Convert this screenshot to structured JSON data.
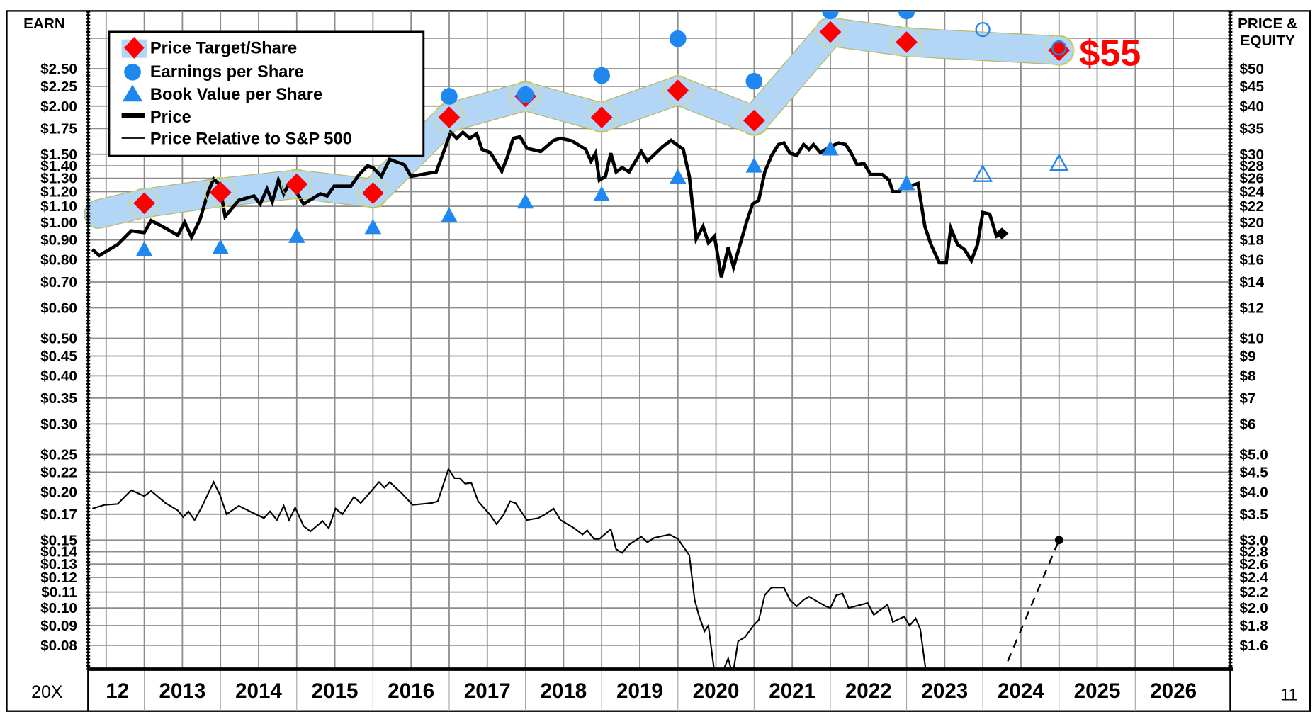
{
  "chart_data": {
    "type": "line",
    "left_axis_title": "EARN",
    "right_axis_title_line1": "PRICE &",
    "right_axis_title_line2": "EQUITY",
    "bottom_left_label": "20X",
    "bottom_right_label": "11",
    "scale": "log",
    "earn_to_price_ratio": 20,
    "left_ticks": [
      "$2.50",
      "$2.25",
      "$2.00",
      "$1.75",
      "$1.50",
      "$1.40",
      "$1.30",
      "$1.20",
      "$1.10",
      "$1.00",
      "$0.90",
      "$0.80",
      "$0.70",
      "$0.60",
      "$0.50",
      "$0.45",
      "$0.40",
      "$0.35",
      "$0.30",
      "$0.25",
      "$0.22",
      "$0.20",
      "$0.17",
      "$0.15",
      "$0.14",
      "$0.13",
      "$0.12",
      "$0.11",
      "$0.10",
      "$0.09",
      "$0.08"
    ],
    "right_ticks": [
      "$50",
      "$45",
      "$40",
      "$35",
      "$30",
      "$28",
      "$26",
      "$24",
      "$22",
      "$20",
      "$18",
      "$16",
      "$14",
      "$12",
      "$10",
      "$9",
      "$8",
      "$7",
      "$6",
      "$5.0",
      "$4.5",
      "$4.0",
      "$3.5",
      "$3.0",
      "$2.8",
      "$2.6",
      "$2.4",
      "$2.2",
      "$2.0",
      "$1.8",
      "$1.6"
    ],
    "right_tick_values": [
      50,
      45,
      40,
      35,
      30,
      28,
      26,
      24,
      22,
      20,
      18,
      16,
      14,
      12,
      10,
      9,
      8,
      7,
      6,
      5.0,
      4.5,
      4.0,
      3.5,
      3.0,
      2.8,
      2.6,
      2.4,
      2.2,
      2.0,
      1.8,
      1.6
    ],
    "extra_grid_values": [
      60
    ],
    "x_labels": [
      "12",
      "2013",
      "2014",
      "2015",
      "2016",
      "2017",
      "2018",
      "2019",
      "2020",
      "2021",
      "2022",
      "2023",
      "2024",
      "2025",
      "2026"
    ],
    "x_range": [
      2012.26,
      2027.0
    ],
    "price_range": [
      1.38,
      70.6
    ],
    "legend": {
      "placement": "top-left",
      "items": [
        "Price Target/Share",
        "Earnings per Share",
        "Book Value per Share",
        "Price",
        "Price Relative to S&P 500"
      ]
    },
    "target_label": "$55",
    "colors": {
      "target": "#ff0000",
      "eps": "#1e88f0",
      "band": "#b3d6f7",
      "band_edge": "#b8b860",
      "price": "#000000",
      "grid": "#8c8c8c"
    },
    "band_start": {
      "t": 2012.4,
      "price": 21.0
    },
    "price_target": [
      {
        "t": 2013,
        "price": 22.4
      },
      {
        "t": 2014,
        "price": 23.9
      },
      {
        "t": 2015,
        "price": 25.1
      },
      {
        "t": 2016,
        "price": 23.8
      },
      {
        "t": 2017,
        "price": 37.4
      },
      {
        "t": 2018,
        "price": 42.4
      },
      {
        "t": 2019,
        "price": 37.4
      },
      {
        "t": 2020,
        "price": 43.9
      },
      {
        "t": 2021,
        "price": 36.7
      },
      {
        "t": 2022,
        "price": 62.3
      },
      {
        "t": 2023,
        "price": 58.6
      },
      {
        "t": 2025,
        "price": 55.8
      }
    ],
    "eps": [
      {
        "t": 2017,
        "value": 2.12,
        "estimate": false
      },
      {
        "t": 2018,
        "value": 2.14,
        "estimate": false
      },
      {
        "t": 2019,
        "value": 2.4,
        "estimate": false
      },
      {
        "t": 2020,
        "value": 2.99,
        "estimate": false
      },
      {
        "t": 2021,
        "value": 2.32,
        "estimate": false
      },
      {
        "t": 2022,
        "value": 3.53,
        "estimate": false
      },
      {
        "t": 2023,
        "value": 3.53,
        "estimate": false
      },
      {
        "t": 2024,
        "value": 3.16,
        "estimate": true
      },
      {
        "t": 2025,
        "value": 2.83,
        "estimate": true
      }
    ],
    "book_value": [
      {
        "t": 2013,
        "value": 0.85,
        "estimate": false
      },
      {
        "t": 2014,
        "value": 0.86,
        "estimate": false
      },
      {
        "t": 2015,
        "value": 0.92,
        "estimate": false
      },
      {
        "t": 2016,
        "value": 0.97,
        "estimate": false
      },
      {
        "t": 2017,
        "value": 1.04,
        "estimate": false
      },
      {
        "t": 2018,
        "value": 1.13,
        "estimate": false
      },
      {
        "t": 2019,
        "value": 1.18,
        "estimate": false
      },
      {
        "t": 2020,
        "value": 1.31,
        "estimate": false
      },
      {
        "t": 2021,
        "value": 1.4,
        "estimate": false
      },
      {
        "t": 2022,
        "value": 1.55,
        "estimate": false
      },
      {
        "t": 2023,
        "value": 1.26,
        "estimate": false
      },
      {
        "t": 2024,
        "value": 1.33,
        "estimate": true
      },
      {
        "t": 2025,
        "value": 1.42,
        "estimate": true
      }
    ],
    "price": [
      [
        2012.32,
        17.0
      ],
      [
        2012.41,
        16.4
      ],
      [
        2012.65,
        17.5
      ],
      [
        2012.83,
        19.0
      ],
      [
        2013.0,
        18.8
      ],
      [
        2013.09,
        20.2
      ],
      [
        2013.28,
        19.3
      ],
      [
        2013.44,
        18.5
      ],
      [
        2013.53,
        20.0
      ],
      [
        2013.62,
        18.3
      ],
      [
        2013.73,
        20.3
      ],
      [
        2013.84,
        24.0
      ],
      [
        2013.91,
        25.9
      ],
      [
        2013.99,
        25.0
      ],
      [
        2014.06,
        20.7
      ],
      [
        2014.24,
        22.8
      ],
      [
        2014.44,
        23.4
      ],
      [
        2014.52,
        22.3
      ],
      [
        2014.61,
        24.4
      ],
      [
        2014.68,
        22.6
      ],
      [
        2014.76,
        25.7
      ],
      [
        2014.83,
        23.7
      ],
      [
        2014.9,
        25.2
      ],
      [
        2014.98,
        24.2
      ],
      [
        2015.09,
        22.3
      ],
      [
        2015.31,
        23.7
      ],
      [
        2015.4,
        23.4
      ],
      [
        2015.49,
        24.8
      ],
      [
        2015.71,
        24.8
      ],
      [
        2015.82,
        26.6
      ],
      [
        2015.93,
        28.0
      ],
      [
        2016.0,
        27.7
      ],
      [
        2016.11,
        26.3
      ],
      [
        2016.22,
        29.1
      ],
      [
        2016.41,
        28.2
      ],
      [
        2016.5,
        26.3
      ],
      [
        2016.83,
        27.0
      ],
      [
        2016.91,
        29.8
      ],
      [
        2017.02,
        34.2
      ],
      [
        2017.1,
        33.0
      ],
      [
        2017.18,
        34.2
      ],
      [
        2017.27,
        33.0
      ],
      [
        2017.36,
        33.9
      ],
      [
        2017.43,
        30.9
      ],
      [
        2017.54,
        30.3
      ],
      [
        2017.69,
        27.1
      ],
      [
        2017.76,
        29.4
      ],
      [
        2017.84,
        33.0
      ],
      [
        2017.93,
        33.3
      ],
      [
        2018.02,
        31.1
      ],
      [
        2018.2,
        30.5
      ],
      [
        2018.37,
        32.6
      ],
      [
        2018.46,
        33.0
      ],
      [
        2018.61,
        32.5
      ],
      [
        2018.79,
        30.9
      ],
      [
        2018.86,
        28.8
      ],
      [
        2018.92,
        30.2
      ],
      [
        2018.97,
        25.7
      ],
      [
        2019.05,
        26.3
      ],
      [
        2019.12,
        30.2
      ],
      [
        2019.19,
        27.0
      ],
      [
        2019.27,
        27.7
      ],
      [
        2019.36,
        27.0
      ],
      [
        2019.52,
        30.5
      ],
      [
        2019.6,
        28.8
      ],
      [
        2019.8,
        31.4
      ],
      [
        2019.91,
        32.6
      ],
      [
        2020.07,
        30.9
      ],
      [
        2020.15,
        26.3
      ],
      [
        2020.24,
        18.1
      ],
      [
        2020.33,
        19.5
      ],
      [
        2020.4,
        17.7
      ],
      [
        2020.48,
        18.4
      ],
      [
        2020.57,
        14.4
      ],
      [
        2020.66,
        17.2
      ],
      [
        2020.73,
        15.3
      ],
      [
        2020.9,
        20.0
      ],
      [
        2020.98,
        22.3
      ],
      [
        2021.06,
        22.8
      ],
      [
        2021.14,
        27.0
      ],
      [
        2021.23,
        29.8
      ],
      [
        2021.32,
        31.8
      ],
      [
        2021.39,
        32.1
      ],
      [
        2021.47,
        30.2
      ],
      [
        2021.56,
        29.8
      ],
      [
        2021.65,
        31.8
      ],
      [
        2021.72,
        30.9
      ],
      [
        2021.78,
        31.8
      ],
      [
        2021.87,
        30.3
      ],
      [
        2022.0,
        31.4
      ],
      [
        2022.11,
        32.1
      ],
      [
        2022.2,
        31.8
      ],
      [
        2022.27,
        30.3
      ],
      [
        2022.35,
        28.2
      ],
      [
        2022.44,
        28.4
      ],
      [
        2022.53,
        26.6
      ],
      [
        2022.68,
        26.6
      ],
      [
        2022.77,
        25.7
      ],
      [
        2022.82,
        24.0
      ],
      [
        2022.9,
        24.0
      ],
      [
        2022.97,
        25.2
      ],
      [
        2023.04,
        24.8
      ],
      [
        2023.15,
        25.2
      ],
      [
        2023.24,
        19.5
      ],
      [
        2023.32,
        17.5
      ],
      [
        2023.43,
        15.7
      ],
      [
        2023.52,
        15.7
      ],
      [
        2023.58,
        19.3
      ],
      [
        2023.67,
        17.5
      ],
      [
        2023.76,
        17.0
      ],
      [
        2023.85,
        15.9
      ],
      [
        2023.93,
        17.5
      ],
      [
        2024.0,
        21.2
      ],
      [
        2024.09,
        21.0
      ],
      [
        2024.18,
        18.4
      ],
      [
        2024.25,
        18.7
      ]
    ],
    "relative_to_sp500": [
      [
        2012.32,
        0.181
      ],
      [
        2012.48,
        0.185
      ],
      [
        2012.65,
        0.186
      ],
      [
        2012.83,
        0.202
      ],
      [
        2013.0,
        0.195
      ],
      [
        2013.09,
        0.201
      ],
      [
        2013.28,
        0.187
      ],
      [
        2013.44,
        0.179
      ],
      [
        2013.51,
        0.172
      ],
      [
        2013.58,
        0.178
      ],
      [
        2013.66,
        0.169
      ],
      [
        2013.75,
        0.182
      ],
      [
        2013.91,
        0.212
      ],
      [
        2013.99,
        0.197
      ],
      [
        2014.08,
        0.175
      ],
      [
        2014.24,
        0.184
      ],
      [
        2014.41,
        0.177
      ],
      [
        2014.57,
        0.171
      ],
      [
        2014.65,
        0.178
      ],
      [
        2014.74,
        0.169
      ],
      [
        2014.83,
        0.184
      ],
      [
        2014.9,
        0.169
      ],
      [
        2014.98,
        0.182
      ],
      [
        2015.09,
        0.163
      ],
      [
        2015.18,
        0.158
      ],
      [
        2015.34,
        0.168
      ],
      [
        2015.42,
        0.161
      ],
      [
        2015.51,
        0.181
      ],
      [
        2015.6,
        0.175
      ],
      [
        2015.75,
        0.194
      ],
      [
        2015.84,
        0.187
      ],
      [
        2016.08,
        0.212
      ],
      [
        2016.15,
        0.205
      ],
      [
        2016.22,
        0.212
      ],
      [
        2016.37,
        0.199
      ],
      [
        2016.52,
        0.185
      ],
      [
        2016.77,
        0.187
      ],
      [
        2016.85,
        0.189
      ],
      [
        2016.99,
        0.229
      ],
      [
        2017.07,
        0.217
      ],
      [
        2017.14,
        0.217
      ],
      [
        2017.21,
        0.21
      ],
      [
        2017.29,
        0.211
      ],
      [
        2017.38,
        0.189
      ],
      [
        2017.54,
        0.174
      ],
      [
        2017.62,
        0.165
      ],
      [
        2017.71,
        0.174
      ],
      [
        2017.8,
        0.189
      ],
      [
        2017.87,
        0.187
      ],
      [
        2018.02,
        0.169
      ],
      [
        2018.17,
        0.171
      ],
      [
        2018.26,
        0.175
      ],
      [
        2018.37,
        0.181
      ],
      [
        2018.46,
        0.169
      ],
      [
        2018.64,
        0.161
      ],
      [
        2018.75,
        0.155
      ],
      [
        2018.81,
        0.159
      ],
      [
        2018.9,
        0.151
      ],
      [
        2018.97,
        0.151
      ],
      [
        2019.12,
        0.16
      ],
      [
        2019.19,
        0.142
      ],
      [
        2019.27,
        0.139
      ],
      [
        2019.36,
        0.146
      ],
      [
        2019.52,
        0.153
      ],
      [
        2019.6,
        0.148
      ],
      [
        2019.69,
        0.152
      ],
      [
        2019.89,
        0.155
      ],
      [
        2020.0,
        0.151
      ],
      [
        2020.15,
        0.137
      ],
      [
        2020.22,
        0.105
      ],
      [
        2020.28,
        0.095
      ],
      [
        2020.35,
        0.087
      ],
      [
        2020.4,
        0.09
      ],
      [
        2020.48,
        0.068
      ],
      [
        2020.57,
        0.067
      ],
      [
        2020.66,
        0.074
      ],
      [
        2020.72,
        0.067
      ],
      [
        2020.79,
        0.082
      ],
      [
        2020.88,
        0.084
      ],
      [
        2020.99,
        0.09
      ],
      [
        2021.06,
        0.093
      ],
      [
        2021.14,
        0.108
      ],
      [
        2021.23,
        0.113
      ],
      [
        2021.39,
        0.113
      ],
      [
        2021.47,
        0.105
      ],
      [
        2021.56,
        0.101
      ],
      [
        2021.65,
        0.105
      ],
      [
        2021.72,
        0.107
      ],
      [
        2021.94,
        0.101
      ],
      [
        2022.0,
        0.1
      ],
      [
        2022.08,
        0.108
      ],
      [
        2022.16,
        0.109
      ],
      [
        2022.24,
        0.1
      ],
      [
        2022.49,
        0.103
      ],
      [
        2022.57,
        0.096
      ],
      [
        2022.75,
        0.102
      ],
      [
        2022.82,
        0.092
      ],
      [
        2022.97,
        0.095
      ],
      [
        2023.04,
        0.09
      ],
      [
        2023.12,
        0.094
      ],
      [
        2023.18,
        0.088
      ],
      [
        2023.26,
        0.067
      ]
    ],
    "relative_projection": [
      [
        2024.25,
        0.067
      ],
      [
        2025.0,
        0.15
      ]
    ]
  }
}
